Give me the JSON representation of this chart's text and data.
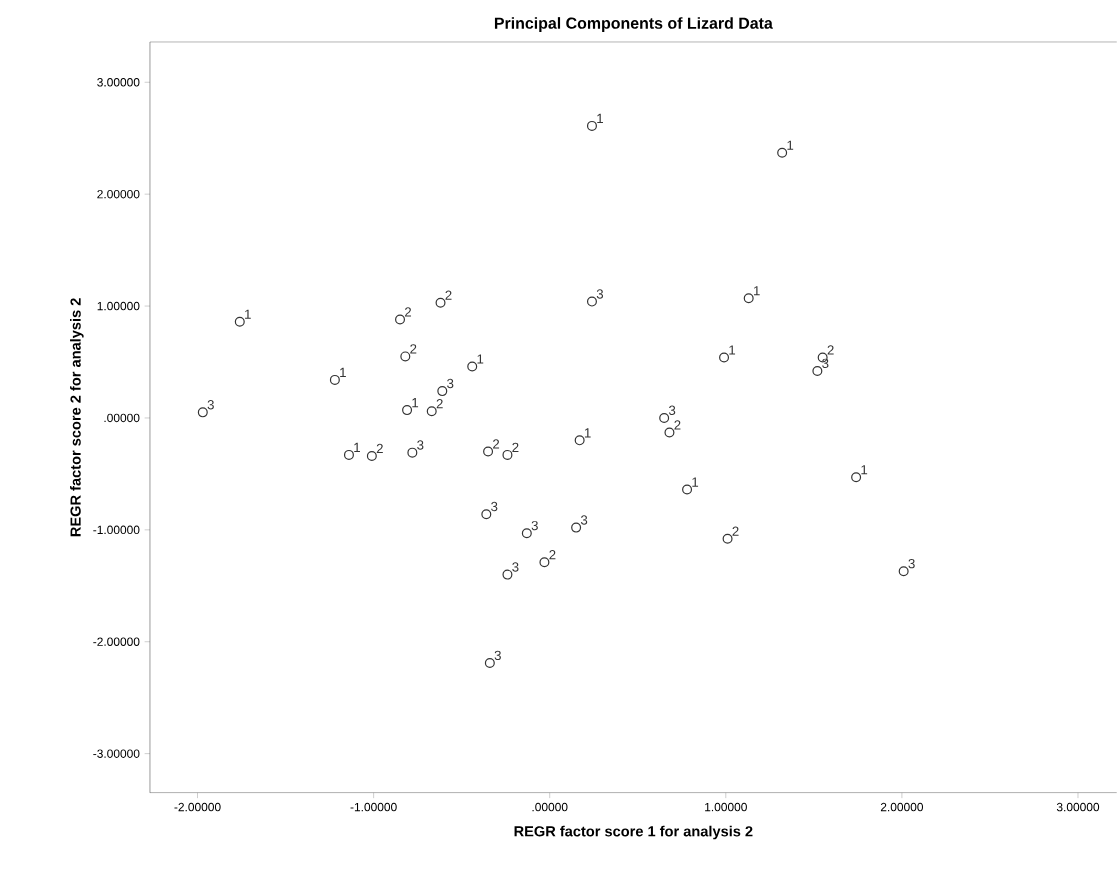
{
  "chart_data": {
    "type": "scatter",
    "title": "Principal Components of Lizard Data",
    "xlabel": "REGR factor score   1 for analysis 2",
    "ylabel": "REGR factor score   2 for analysis 2",
    "xlim": [
      -2.27,
      3.22
    ],
    "ylim": [
      -3.35,
      3.36
    ],
    "xticks": [
      {
        "value": -2,
        "label": "-2.00000"
      },
      {
        "value": -1,
        "label": "-1.00000"
      },
      {
        "value": 0,
        "label": ".00000"
      },
      {
        "value": 1,
        "label": "1.00000"
      },
      {
        "value": 2,
        "label": "2.00000"
      },
      {
        "value": 3,
        "label": "3.00000"
      }
    ],
    "yticks": [
      {
        "value": -3,
        "label": "-3.00000"
      },
      {
        "value": -2,
        "label": "-2.00000"
      },
      {
        "value": -1,
        "label": "-1.00000"
      },
      {
        "value": 0,
        "label": ".00000"
      },
      {
        "value": 1,
        "label": "1.00000"
      },
      {
        "value": 2,
        "label": "2.00000"
      },
      {
        "value": 3,
        "label": "3.00000"
      }
    ],
    "marker": "circle",
    "series": [
      {
        "color": "#333333",
        "x": [
          0.24,
          1.32,
          -1.76,
          1.13,
          -1.22,
          -0.44,
          -0.81,
          -1.14,
          0.17,
          0.99,
          0.78,
          1.74
        ],
        "values": [
          2.61,
          2.37,
          0.86,
          1.07,
          0.34,
          0.46,
          0.07,
          -0.33,
          -0.2,
          0.54,
          -0.64,
          -0.53
        ]
      },
      {
        "color": "#333333",
        "x": [
          -0.85,
          -0.62,
          -0.82,
          -0.67,
          -1.01,
          -0.35,
          -0.24,
          -0.03,
          1.55,
          0.68,
          1.01
        ],
        "values": [
          0.88,
          1.03,
          0.55,
          0.06,
          -0.34,
          -0.3,
          -0.33,
          -1.29,
          0.54,
          -0.13,
          -1.08
        ]
      },
      {
        "color": "#333333",
        "x": [
          0.24,
          -0.61,
          -1.97,
          -0.78,
          -0.36,
          -0.13,
          0.15,
          -0.24,
          -0.34,
          1.52,
          0.65,
          2.01
        ],
        "values": [
          1.04,
          0.24,
          0.05,
          -0.31,
          -0.86,
          -1.03,
          -0.98,
          -1.4,
          -2.19,
          0.42,
          0.0,
          -1.37
        ]
      }
    ],
    "annotations": [
      {
        "text": "1",
        "x": 0.24,
        "y": 2.61
      },
      {
        "text": "1",
        "x": 1.32,
        "y": 2.37
      },
      {
        "text": "1",
        "x": -1.76,
        "y": 0.86
      },
      {
        "text": "1",
        "x": 1.13,
        "y": 1.07
      },
      {
        "text": "1",
        "x": -1.22,
        "y": 0.34
      },
      {
        "text": "1",
        "x": -0.44,
        "y": 0.46
      },
      {
        "text": "1",
        "x": -0.81,
        "y": 0.07
      },
      {
        "text": "1",
        "x": -1.14,
        "y": -0.33
      },
      {
        "text": "1",
        "x": 0.17,
        "y": -0.2
      },
      {
        "text": "1",
        "x": 0.99,
        "y": 0.54
      },
      {
        "text": "1",
        "x": 0.78,
        "y": -0.64
      },
      {
        "text": "1",
        "x": 1.74,
        "y": -0.53
      },
      {
        "text": "2",
        "x": -0.85,
        "y": 0.88
      },
      {
        "text": "2",
        "x": -0.62,
        "y": 1.03
      },
      {
        "text": "2",
        "x": -0.82,
        "y": 0.55
      },
      {
        "text": "2",
        "x": -0.67,
        "y": 0.06
      },
      {
        "text": "2",
        "x": -1.01,
        "y": -0.34
      },
      {
        "text": "2",
        "x": -0.35,
        "y": -0.3
      },
      {
        "text": "2",
        "x": -0.24,
        "y": -0.33
      },
      {
        "text": "2",
        "x": -0.03,
        "y": -1.29
      },
      {
        "text": "2",
        "x": 1.55,
        "y": 0.54
      },
      {
        "text": "2",
        "x": 0.68,
        "y": -0.13
      },
      {
        "text": "2",
        "x": 1.01,
        "y": -1.08
      },
      {
        "text": "3",
        "x": 0.24,
        "y": 1.04
      },
      {
        "text": "3",
        "x": -0.61,
        "y": 0.24
      },
      {
        "text": "3",
        "x": -1.97,
        "y": 0.05
      },
      {
        "text": "3",
        "x": -0.78,
        "y": -0.31
      },
      {
        "text": "3",
        "x": -0.36,
        "y": -0.86
      },
      {
        "text": "3",
        "x": -0.13,
        "y": -1.03
      },
      {
        "text": "3",
        "x": 0.15,
        "y": -0.98
      },
      {
        "text": "3",
        "x": -0.24,
        "y": -1.4
      },
      {
        "text": "3",
        "x": -0.34,
        "y": -2.19
      },
      {
        "text": "3",
        "x": 1.52,
        "y": 0.42
      },
      {
        "text": "3",
        "x": 0.65,
        "y": 0.0
      },
      {
        "text": "3",
        "x": 2.01,
        "y": -1.37
      }
    ]
  }
}
